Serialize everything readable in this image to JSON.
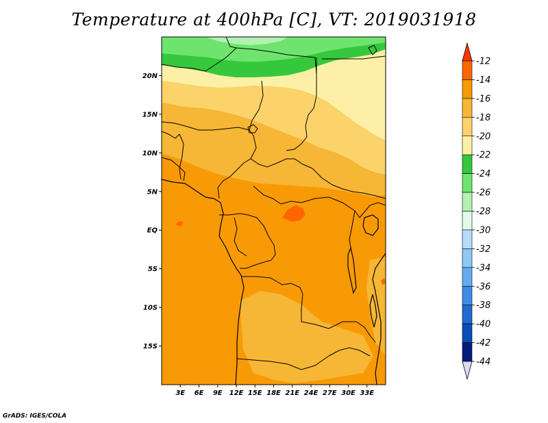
{
  "title": "Temperature at 400hPa [C], VT: 2019031918",
  "credit": "GrADS: IGES/COLA",
  "map": {
    "lon_range": [
      0,
      36
    ],
    "lat_range": [
      -20,
      25
    ],
    "lat_ticks": [
      {
        "lat": 20,
        "label": "20N"
      },
      {
        "lat": 15,
        "label": "15N"
      },
      {
        "lat": 10,
        "label": "10N"
      },
      {
        "lat": 5,
        "label": "5N"
      },
      {
        "lat": 0,
        "label": "EQ"
      },
      {
        "lat": -5,
        "label": "5S"
      },
      {
        "lat": -10,
        "label": "10S"
      },
      {
        "lat": -15,
        "label": "15S"
      }
    ],
    "lon_ticks": [
      {
        "lon": 3,
        "label": "3E"
      },
      {
        "lon": 6,
        "label": "6E"
      },
      {
        "lon": 9,
        "label": "9E"
      },
      {
        "lon": 12,
        "label": "12E"
      },
      {
        "lon": 15,
        "label": "15E"
      },
      {
        "lon": 18,
        "label": "18E"
      },
      {
        "lon": 21,
        "label": "21E"
      },
      {
        "lon": 24,
        "label": "24E"
      },
      {
        "lon": 27,
        "label": "27E"
      },
      {
        "lon": 30,
        "label": "30E"
      },
      {
        "lon": 33,
        "label": "33E"
      }
    ]
  },
  "colorbar": {
    "labels": [
      "-12",
      "-14",
      "-16",
      "-18",
      "-20",
      "-22",
      "-24",
      "-26",
      "-28",
      "-30",
      "-32",
      "-34",
      "-36",
      "-38",
      "-40",
      "-42",
      "-44"
    ],
    "colors": [
      "#ff6600",
      "#f89a06",
      "#f6b636",
      "#fbd36a",
      "#fdf0a6",
      "#36c83c",
      "#6ee46e",
      "#b2f2b2",
      "#e2fbe8",
      "#b4dcf8",
      "#8ec8f4",
      "#64acee",
      "#3c8ce6",
      "#1e6ad2",
      "#0a4cb8",
      "#061c7a"
    ],
    "top_arrow_color": "#ff3a00",
    "bottom_arrow_color": "#dcdcf6"
  },
  "fill_colors": {
    "c_m14": "#f89a06",
    "c_m16": "#f6b636",
    "c_m18": "#fbd36a",
    "c_m20": "#fdf0a6",
    "c_m22": "#36c83c",
    "c_m24": "#6ee46e",
    "c_m26": "#b2f2b2",
    "c_m12": "#ff6600"
  }
}
